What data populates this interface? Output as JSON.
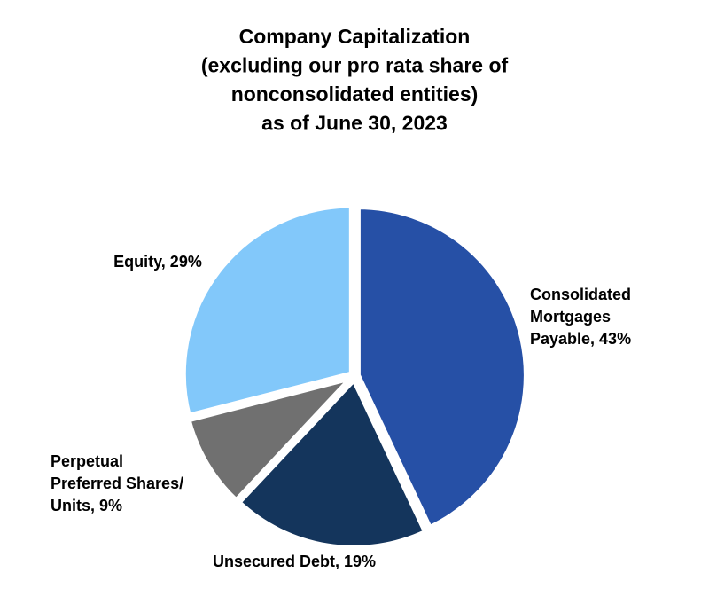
{
  "chart_data": {
    "type": "pie",
    "title": [
      "Company Capitalization",
      "(excluding our pro rata share of",
      "nonconsolidated entities)",
      "as of June 30, 2023"
    ],
    "values": [
      43,
      19,
      9,
      29
    ],
    "value_labels": [
      [
        "Consolidated",
        "Mortgages",
        "Payable, 43%"
      ],
      [
        "Unsecured Debt, 19%"
      ],
      [
        "Perpetual",
        "Preferred Shares/",
        "Units, 9%"
      ],
      [
        "Equity, 29%"
      ]
    ],
    "colors": [
      "#2650a6",
      "#14355c",
      "#707070",
      "#82c8fa"
    ]
  }
}
